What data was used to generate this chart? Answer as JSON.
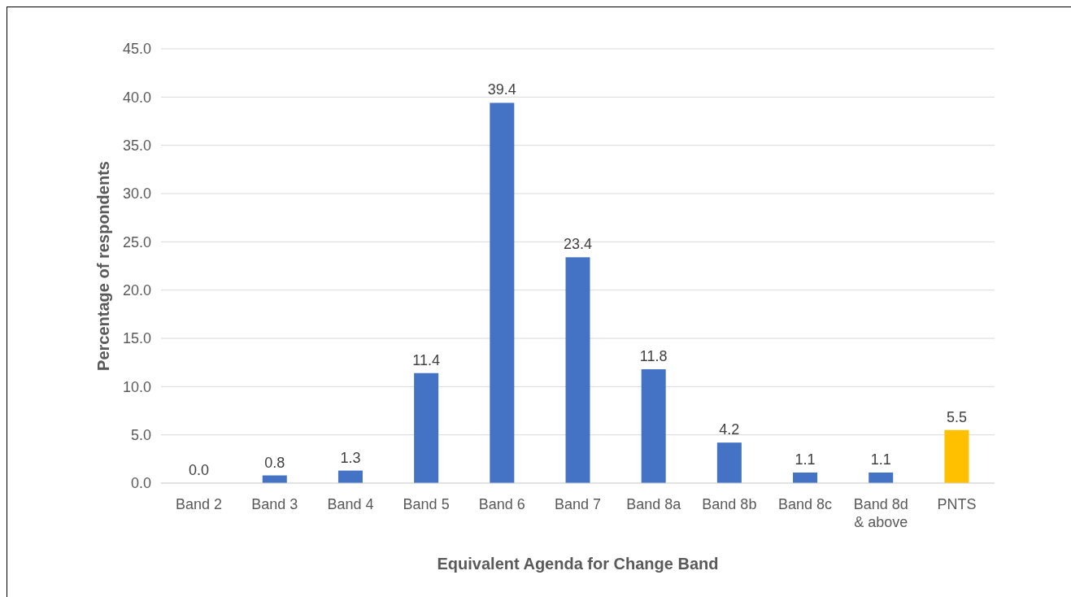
{
  "chart_data": {
    "type": "bar",
    "xlabel": "Equivalent Agenda for Change Band",
    "ylabel": "Percentage of respondents",
    "categories": [
      "Band 2",
      "Band 3",
      "Band 4",
      "Band 5",
      "Band 6",
      "Band 7",
      "Band 8a",
      "Band 8b",
      "Band 8c",
      "Band 8d & above",
      "PNTS"
    ],
    "values": [
      0.0,
      0.8,
      1.3,
      11.4,
      39.4,
      23.4,
      11.8,
      4.2,
      1.1,
      1.1,
      5.5
    ],
    "value_labels": [
      "0.0",
      "0.8",
      "1.3",
      "11.4",
      "39.4",
      "23.4",
      "11.8",
      "4.2",
      "1.1",
      "1.1",
      "5.5"
    ],
    "colors": [
      "#4472c4",
      "#4472c4",
      "#4472c4",
      "#4472c4",
      "#4472c4",
      "#4472c4",
      "#4472c4",
      "#4472c4",
      "#4472c4",
      "#4472c4",
      "#ffc000"
    ],
    "ylim": [
      0,
      45
    ],
    "yticks": [
      {
        "value": 0,
        "label": "0.0"
      },
      {
        "value": 5,
        "label": "5.0"
      },
      {
        "value": 10,
        "label": "10.0"
      },
      {
        "value": 15,
        "label": "15.0"
      },
      {
        "value": 20,
        "label": "20.0"
      },
      {
        "value": 25,
        "label": "25.0"
      },
      {
        "value": 30,
        "label": "30.0"
      },
      {
        "value": 35,
        "label": "35.0"
      },
      {
        "value": 40,
        "label": "40.0"
      },
      {
        "value": 45,
        "label": "45.0"
      }
    ],
    "grid": "y"
  }
}
